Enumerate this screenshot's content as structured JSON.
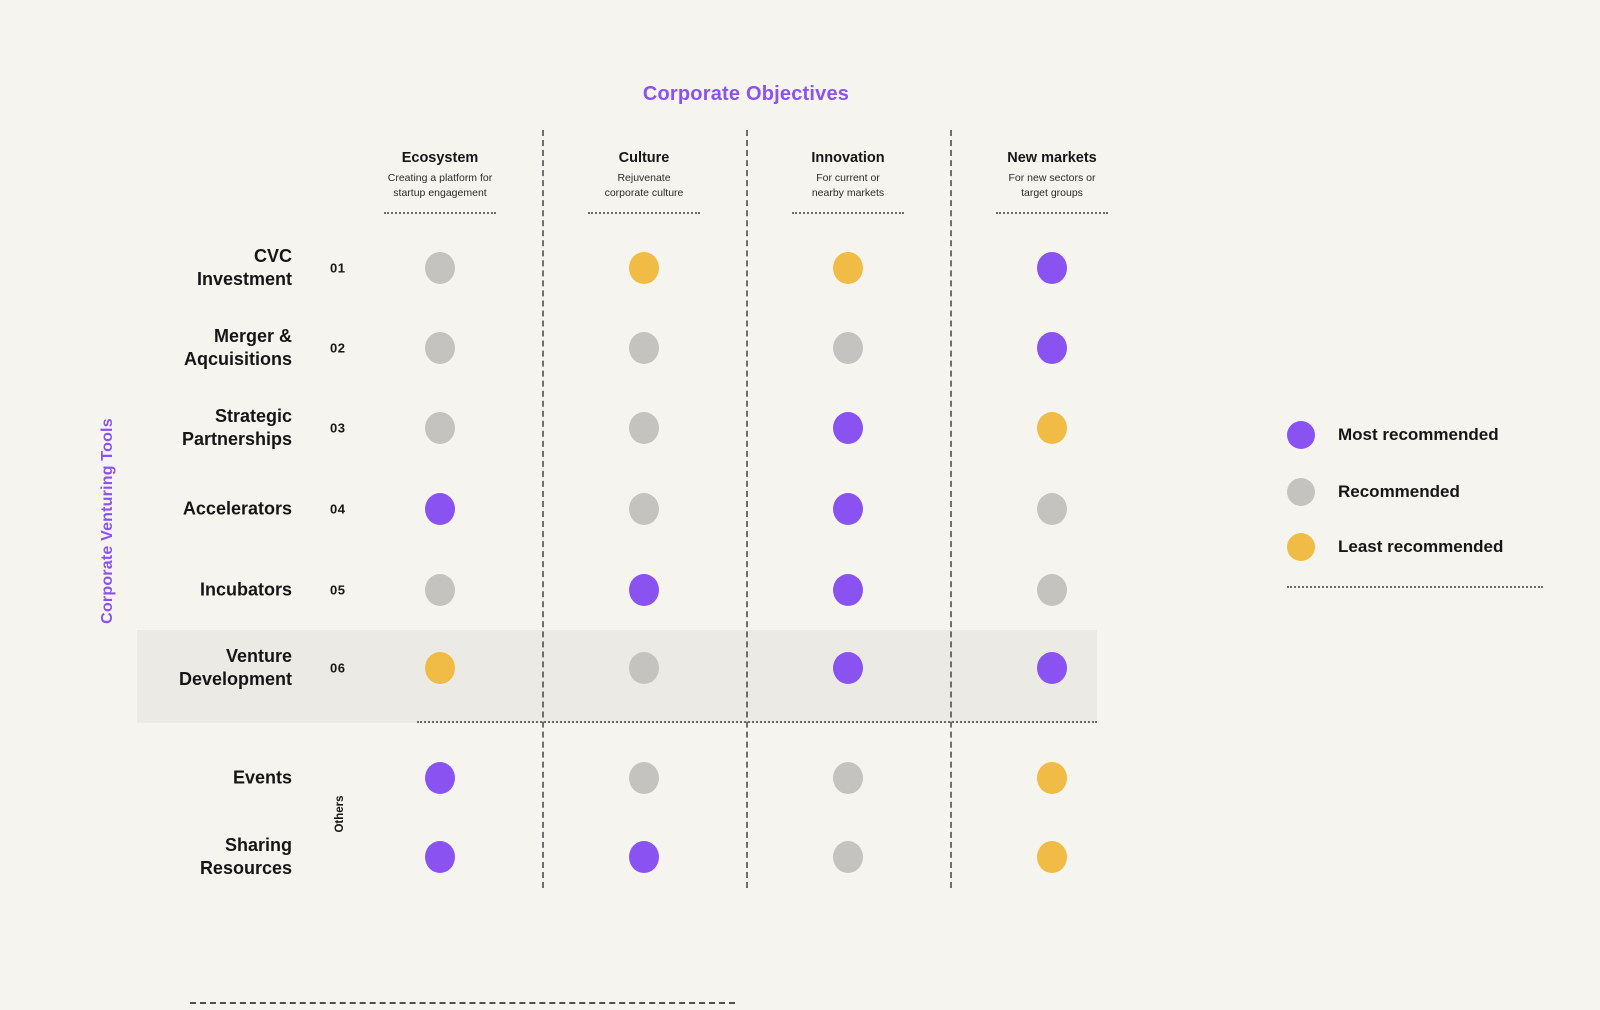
{
  "title": "Corporate Objectives",
  "y_axis_label": "Corporate Venturing Tools",
  "others_label": "Others",
  "colors": {
    "purple": "#8A52F1",
    "gray": "#C4C3C0",
    "yellow": "#F0BC45",
    "highlight_band": "#ECEAE4",
    "background": "#F6F4EE",
    "title_purple": "#8A52F1"
  },
  "columns": [
    {
      "name": "Ecosystem",
      "subtitle": "Creating a platform for\nstartup engagement"
    },
    {
      "name": "Culture",
      "subtitle": "Rejuvenate\ncorporate culture"
    },
    {
      "name": "Innovation",
      "subtitle": "For current or\nnearby markets"
    },
    {
      "name": "New markets",
      "subtitle": "For new sectors or\ntarget groups"
    }
  ],
  "rows": [
    {
      "name": "CVC\nInvestment",
      "number": "01",
      "group": "numbered",
      "highlighted": false,
      "values": [
        "recommended",
        "least",
        "least",
        "most"
      ]
    },
    {
      "name": "Merger &\nAqcuisitions",
      "number": "02",
      "group": "numbered",
      "highlighted": false,
      "values": [
        "recommended",
        "recommended",
        "recommended",
        "most"
      ]
    },
    {
      "name": "Strategic\nPartnerships",
      "number": "03",
      "group": "numbered",
      "highlighted": false,
      "values": [
        "recommended",
        "recommended",
        "most",
        "least"
      ]
    },
    {
      "name": "Accelerators",
      "number": "04",
      "group": "numbered",
      "highlighted": false,
      "values": [
        "most",
        "recommended",
        "most",
        "recommended"
      ]
    },
    {
      "name": "Incubators",
      "number": "05",
      "group": "numbered",
      "highlighted": false,
      "values": [
        "recommended",
        "most",
        "most",
        "recommended"
      ]
    },
    {
      "name": "Venture\nDevelopment",
      "number": "06",
      "group": "numbered",
      "highlighted": true,
      "values": [
        "least",
        "recommended",
        "most",
        "most"
      ]
    },
    {
      "name": "Events",
      "number": "",
      "group": "others",
      "highlighted": false,
      "values": [
        "most",
        "recommended",
        "recommended",
        "least"
      ]
    },
    {
      "name": "Sharing\nResources",
      "number": "",
      "group": "others",
      "highlighted": false,
      "values": [
        "most",
        "most",
        "recommended",
        "least"
      ]
    }
  ],
  "legend": [
    {
      "label": "Most recommended",
      "level": "most"
    },
    {
      "label": "Recommended",
      "level": "recommended"
    },
    {
      "label": "Least recommended",
      "level": "least"
    }
  ],
  "chart_data": {
    "type": "heatmap",
    "title": "Corporate Objectives",
    "xlabel": "Corporate Objectives",
    "ylabel": "Corporate Venturing Tools",
    "columns": [
      "Ecosystem",
      "Culture",
      "Innovation",
      "New markets"
    ],
    "column_subtitles": [
      "Creating a platform for startup engagement",
      "Rejuvenate corporate culture",
      "For current or nearby markets",
      "For new sectors or target groups"
    ],
    "rows": [
      "CVC Investment",
      "Merger & Aqcuisitions",
      "Strategic Partnerships",
      "Accelerators",
      "Incubators",
      "Venture Development",
      "Events",
      "Sharing Resources"
    ],
    "row_numbers": [
      "01",
      "02",
      "03",
      "04",
      "05",
      "06",
      "",
      ""
    ],
    "others_group_rows": [
      "Events",
      "Sharing Resources"
    ],
    "highlighted_row": "Venture Development",
    "values": [
      [
        "Recommended",
        "Least recommended",
        "Least recommended",
        "Most recommended"
      ],
      [
        "Recommended",
        "Recommended",
        "Recommended",
        "Most recommended"
      ],
      [
        "Recommended",
        "Recommended",
        "Most recommended",
        "Least recommended"
      ],
      [
        "Most recommended",
        "Recommended",
        "Most recommended",
        "Recommended"
      ],
      [
        "Recommended",
        "Most recommended",
        "Most recommended",
        "Recommended"
      ],
      [
        "Least recommended",
        "Recommended",
        "Most recommended",
        "Most recommended"
      ],
      [
        "Most recommended",
        "Recommended",
        "Recommended",
        "Least recommended"
      ],
      [
        "Most recommended",
        "Most recommended",
        "Recommended",
        "Least recommended"
      ]
    ],
    "legend": [
      {
        "label": "Most recommended",
        "color": "#8A52F1"
      },
      {
        "label": "Recommended",
        "color": "#C4C3C0"
      },
      {
        "label": "Least recommended",
        "color": "#F0BC45"
      }
    ],
    "legend_position": "right"
  }
}
